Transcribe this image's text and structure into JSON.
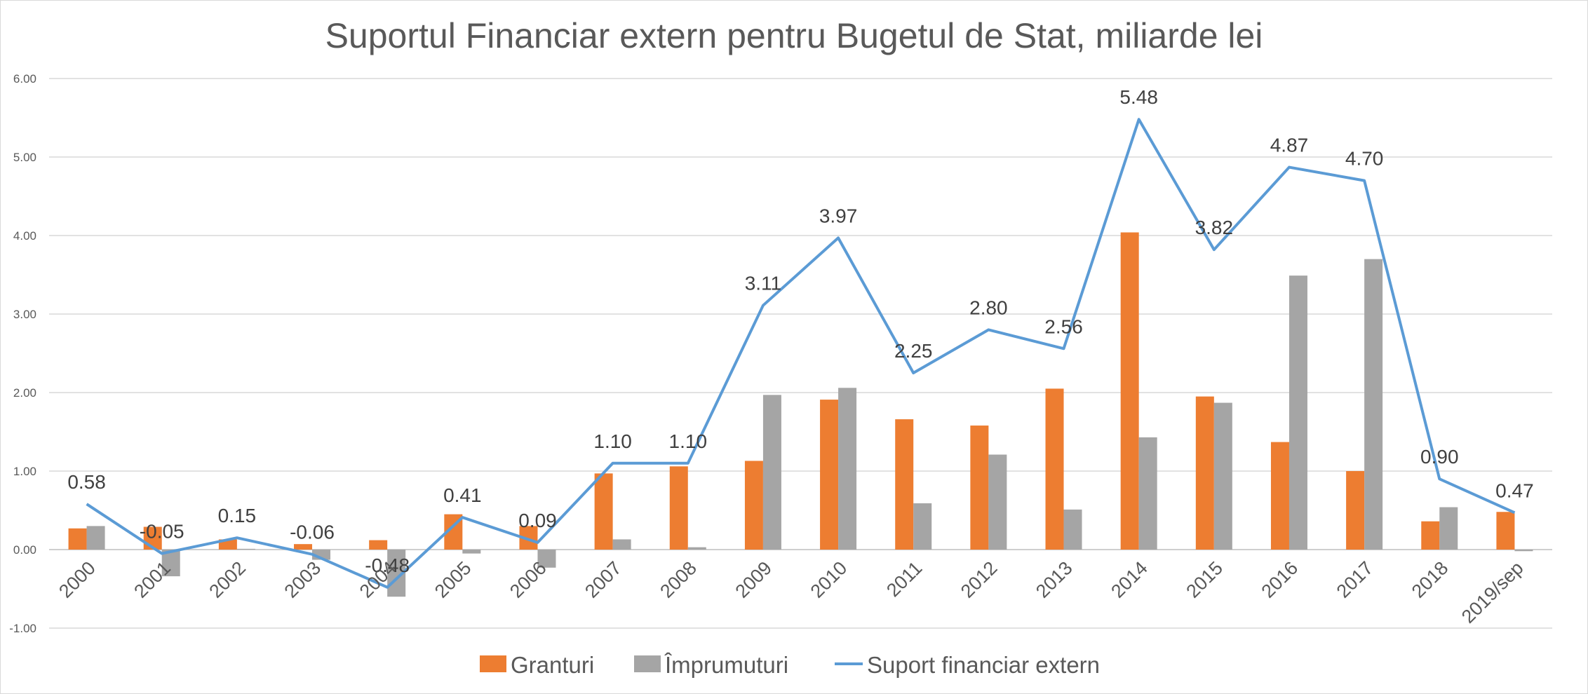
{
  "chart_data": {
    "type": "bar",
    "title": "Suportul Financiar extern pentru Bugetul de Stat, miliarde lei",
    "categories": [
      "2000",
      "2001",
      "2002",
      "2003",
      "2004",
      "2005",
      "2006",
      "2007",
      "2008",
      "2009",
      "2010",
      "2011",
      "2012",
      "2013",
      "2014",
      "2015",
      "2016",
      "2017",
      "2018",
      "2019/sep"
    ],
    "ylim": [
      -1,
      6
    ],
    "yticks": [
      "-1.00",
      "0.00",
      "1.00",
      "2.00",
      "3.00",
      "4.00",
      "5.00",
      "6.00"
    ],
    "grid": true,
    "legend_position": "bottom",
    "series": [
      {
        "name": "Granturi",
        "type": "bar",
        "color": "#ED7D31",
        "values": [
          0.27,
          0.29,
          0.13,
          0.07,
          0.12,
          0.45,
          0.3,
          0.97,
          1.06,
          1.13,
          1.91,
          1.66,
          1.58,
          2.05,
          4.04,
          1.95,
          1.37,
          1.0,
          0.36,
          0.48
        ]
      },
      {
        "name": "Împrumuturi",
        "type": "bar",
        "color": "#A5A5A5",
        "values": [
          0.3,
          -0.34,
          0.01,
          -0.13,
          -0.6,
          -0.05,
          -0.23,
          0.13,
          0.03,
          1.97,
          2.06,
          0.59,
          1.21,
          0.51,
          1.43,
          1.87,
          3.49,
          3.7,
          0.54,
          -0.02
        ]
      },
      {
        "name": "Suport financiar extern",
        "type": "line",
        "color": "#5B9BD5",
        "values": [
          0.58,
          -0.05,
          0.15,
          -0.06,
          -0.48,
          0.41,
          0.09,
          1.1,
          1.1,
          3.11,
          3.97,
          2.25,
          2.8,
          2.56,
          5.48,
          3.82,
          4.87,
          4.7,
          0.9,
          0.47
        ],
        "labels": [
          "0.58",
          "-0.05",
          "0.15",
          "-0.06",
          "-0.48",
          "0.41",
          "0.09",
          "1.10",
          "1.10",
          "3.11",
          "3.97",
          "2.25",
          "2.80",
          "2.56",
          "5.48",
          "3.82",
          "4.87",
          "4.70",
          "0.90",
          "0.47"
        ]
      }
    ]
  }
}
